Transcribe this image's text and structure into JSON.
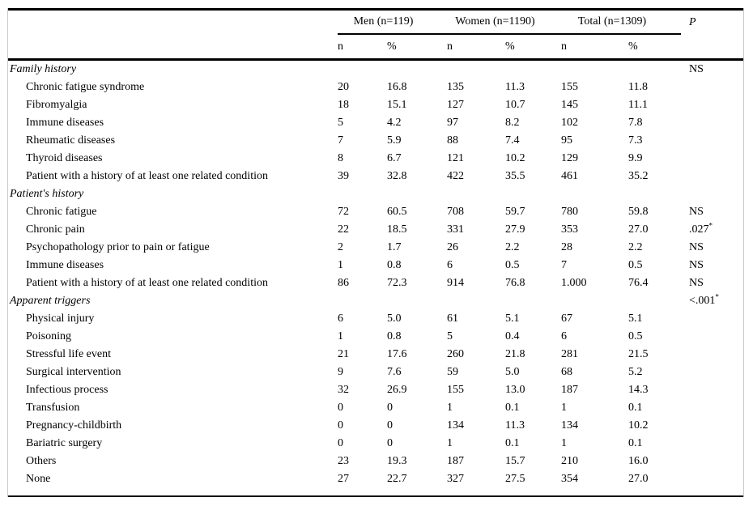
{
  "figure": {
    "col_groups": [
      "Men (n=119)",
      "Women (n=1190)",
      "Total (n=1309)"
    ],
    "p_header": "P",
    "sub_headers": [
      "n",
      "%",
      "n",
      "%",
      "n",
      "%"
    ],
    "sections": [
      {
        "title": "Family history",
        "p": "NS",
        "p_sup": "",
        "rows": [
          {
            "label": "Chronic fatigue syndrome",
            "values": [
              "20",
              "16.8",
              "135",
              "11.3",
              "155",
              "11.8"
            ],
            "p": "",
            "p_sup": ""
          },
          {
            "label": "Fibromyalgia",
            "values": [
              "18",
              "15.1",
              "127",
              "10.7",
              "145",
              "11.1"
            ],
            "p": "",
            "p_sup": ""
          },
          {
            "label": "Immune diseases",
            "values": [
              "5",
              "4.2",
              "97",
              "8.2",
              "102",
              "7.8"
            ],
            "p": "",
            "p_sup": ""
          },
          {
            "label": "Rheumatic diseases",
            "values": [
              "7",
              "5.9",
              "88",
              "7.4",
              "95",
              "7.3"
            ],
            "p": "",
            "p_sup": ""
          },
          {
            "label": "Thyroid diseases",
            "values": [
              "8",
              "6.7",
              "121",
              "10.2",
              "129",
              "9.9"
            ],
            "p": "",
            "p_sup": ""
          },
          {
            "label": "Patient with a history of at least one related condition",
            "values": [
              "39",
              "32.8",
              "422",
              "35.5",
              "461",
              "35.2"
            ],
            "p": "",
            "p_sup": ""
          }
        ]
      },
      {
        "title": "Patient's history",
        "p": "",
        "p_sup": "",
        "rows": [
          {
            "label": "Chronic fatigue",
            "values": [
              "72",
              "60.5",
              "708",
              "59.7",
              "780",
              "59.8"
            ],
            "p": "NS",
            "p_sup": ""
          },
          {
            "label": "Chronic pain",
            "values": [
              "22",
              "18.5",
              "331",
              "27.9",
              "353",
              "27.0"
            ],
            "p": ".027",
            "p_sup": "*"
          },
          {
            "label": "Psychopathology prior to pain or fatigue",
            "values": [
              "2",
              "1.7",
              "26",
              "2.2",
              "28",
              "2.2"
            ],
            "p": "NS",
            "p_sup": ""
          },
          {
            "label": "Immune diseases",
            "values": [
              "1",
              "0.8",
              "6",
              "0.5",
              "7",
              "0.5"
            ],
            "p": "NS",
            "p_sup": ""
          },
          {
            "label": "Patient with a history of at least one related condition",
            "values": [
              "86",
              "72.3",
              "914",
              "76.8",
              "1.000",
              "76.4"
            ],
            "p": "NS",
            "p_sup": ""
          }
        ]
      },
      {
        "title": "Apparent triggers",
        "p": "<.001",
        "p_sup": "*",
        "rows": [
          {
            "label": "Physical injury",
            "values": [
              "6",
              "5.0",
              "61",
              "5.1",
              "67",
              "5.1"
            ],
            "p": "",
            "p_sup": ""
          },
          {
            "label": "Poisoning",
            "values": [
              "1",
              "0.8",
              "5",
              "0.4",
              "6",
              "0.5"
            ],
            "p": "",
            "p_sup": ""
          },
          {
            "label": "Stressful life event",
            "values": [
              "21",
              "17.6",
              "260",
              "21.8",
              "281",
              "21.5"
            ],
            "p": "",
            "p_sup": ""
          },
          {
            "label": "Surgical intervention",
            "values": [
              "9",
              "7.6",
              "59",
              "5.0",
              "68",
              "5.2"
            ],
            "p": "",
            "p_sup": ""
          },
          {
            "label": "Infectious process",
            "values": [
              "32",
              "26.9",
              "155",
              "13.0",
              "187",
              "14.3"
            ],
            "p": "",
            "p_sup": ""
          },
          {
            "label": "Transfusion",
            "values": [
              "0",
              "0",
              "1",
              "0.1",
              "1",
              "0.1"
            ],
            "p": "",
            "p_sup": ""
          },
          {
            "label": "Pregnancy-childbirth",
            "values": [
              "0",
              "0",
              "134",
              "11.3",
              "134",
              "10.2"
            ],
            "p": "",
            "p_sup": ""
          },
          {
            "label": "Bariatric surgery",
            "values": [
              "0",
              "0",
              "1",
              "0.1",
              "1",
              "0.1"
            ],
            "p": "",
            "p_sup": ""
          },
          {
            "label": "Others",
            "values": [
              "23",
              "19.3",
              "187",
              "15.7",
              "210",
              "16.0"
            ],
            "p": "",
            "p_sup": ""
          },
          {
            "label": "None",
            "values": [
              "27",
              "22.7",
              "327",
              "27.5",
              "354",
              "27.0"
            ],
            "p": "",
            "p_sup": ""
          }
        ]
      }
    ]
  }
}
